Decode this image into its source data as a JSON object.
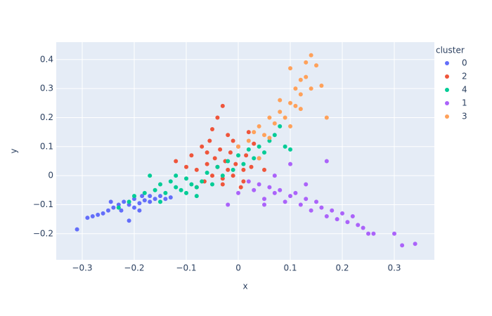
{
  "chart_data": {
    "type": "scatter",
    "x_label": "x",
    "y_label": "y",
    "legend_title": "cluster",
    "legend": "right",
    "grid": true,
    "xlim": [
      -0.35,
      0.377
    ],
    "ylim": [
      -0.29,
      0.46
    ],
    "xticks": [
      {
        "value": -0.3,
        "label": "−0.3"
      },
      {
        "value": -0.2,
        "label": "−0.2"
      },
      {
        "value": -0.1,
        "label": "−0.1"
      },
      0,
      0.1,
      0.2,
      0.3
    ],
    "yticks": [
      {
        "value": -0.2,
        "label": "−0.2"
      },
      {
        "value": -0.1,
        "label": "−0.1"
      },
      0,
      0.1,
      0.2,
      0.3,
      0.4
    ],
    "series": [
      {
        "name": "0",
        "color": "#636efa",
        "x": [
          -0.31,
          -0.29,
          -0.28,
          -0.27,
          -0.26,
          -0.25,
          -0.245,
          -0.24,
          -0.23,
          -0.225,
          -0.22,
          -0.21,
          -0.2,
          -0.2,
          -0.19,
          -0.185,
          -0.18,
          -0.17,
          -0.17,
          -0.16,
          -0.15,
          -0.14,
          -0.13,
          -0.21,
          -0.19
        ],
        "values": [
          -0.185,
          -0.145,
          -0.14,
          -0.135,
          -0.13,
          -0.12,
          -0.09,
          -0.11,
          -0.1,
          -0.12,
          -0.09,
          -0.1,
          -0.08,
          -0.11,
          -0.095,
          -0.07,
          -0.085,
          -0.09,
          -0.07,
          -0.08,
          -0.07,
          -0.08,
          -0.075,
          -0.155,
          -0.12
        ]
      },
      {
        "name": "2",
        "color": "#ef553b",
        "x": [
          -0.12,
          -0.1,
          -0.09,
          -0.08,
          -0.07,
          -0.065,
          -0.06,
          -0.055,
          -0.05,
          -0.05,
          -0.045,
          -0.04,
          -0.035,
          -0.03,
          -0.03,
          -0.025,
          -0.02,
          -0.02,
          -0.015,
          -0.01,
          -0.005,
          0,
          0.005,
          0.01,
          0.015,
          0.02,
          0.025,
          0.03,
          0.04,
          0.05,
          -0.03,
          -0.06,
          -0.08,
          -0.04,
          -0.01,
          0.01
        ],
        "values": [
          0.05,
          0.03,
          0.07,
          0.02,
          0.1,
          -0.02,
          0.04,
          0.12,
          0.0,
          0.16,
          0.06,
          0.03,
          0.09,
          -0.03,
          0.24,
          0.05,
          0.02,
          0.14,
          0.08,
          0.0,
          0.04,
          0.1,
          -0.04,
          0.02,
          0.07,
          0.15,
          0.03,
          0.11,
          0.06,
          0.02,
          -0.01,
          0.08,
          -0.04,
          0.2,
          0.12,
          -0.02
        ]
      },
      {
        "name": "4",
        "color": "#00cc96",
        "x": [
          -0.23,
          -0.21,
          -0.2,
          -0.18,
          -0.17,
          -0.16,
          -0.15,
          -0.14,
          -0.13,
          -0.12,
          -0.11,
          -0.1,
          -0.1,
          -0.09,
          -0.08,
          -0.07,
          -0.06,
          -0.05,
          -0.04,
          -0.03,
          -0.02,
          -0.01,
          0,
          0.01,
          0.02,
          0.03,
          0.04,
          0.05,
          0.06,
          0.07,
          0.08,
          0.09,
          0.1,
          -0.15,
          -0.12,
          -0.08
        ],
        "values": [
          -0.11,
          -0.09,
          -0.07,
          -0.06,
          0.0,
          -0.05,
          -0.03,
          -0.06,
          -0.02,
          -0.04,
          -0.05,
          -0.01,
          -0.06,
          -0.03,
          -0.04,
          -0.02,
          0.01,
          -0.03,
          0.03,
          0.0,
          0.05,
          0.02,
          0.07,
          0.04,
          0.09,
          0.06,
          0.1,
          0.08,
          0.12,
          0.14,
          0.17,
          0.1,
          0.09,
          -0.09,
          0.0,
          -0.07
        ]
      },
      {
        "name": "1",
        "color": "#ab63fa",
        "x": [
          -0.02,
          0,
          0.02,
          0.03,
          0.04,
          0.05,
          0.06,
          0.07,
          0.08,
          0.09,
          0.1,
          0.11,
          0.12,
          0.13,
          0.14,
          0.15,
          0.16,
          0.17,
          0.18,
          0.19,
          0.2,
          0.21,
          0.22,
          0.23,
          0.24,
          0.25,
          0.26,
          0.3,
          0.315,
          0.34,
          0.1,
          0.17,
          0.05,
          0.13,
          0.07
        ],
        "values": [
          -0.1,
          -0.06,
          -0.02,
          -0.05,
          -0.03,
          -0.08,
          -0.04,
          -0.06,
          -0.05,
          -0.09,
          -0.07,
          -0.06,
          -0.1,
          -0.08,
          -0.12,
          -0.09,
          -0.11,
          -0.14,
          -0.12,
          -0.15,
          -0.13,
          -0.16,
          -0.14,
          -0.17,
          -0.18,
          -0.2,
          -0.2,
          -0.2,
          -0.24,
          -0.235,
          0.04,
          0.05,
          -0.1,
          -0.03,
          0.0
        ]
      },
      {
        "name": "3",
        "color": "#ffa15a",
        "x": [
          0.0,
          0.02,
          0.03,
          0.04,
          0.05,
          0.06,
          0.07,
          0.08,
          0.08,
          0.09,
          0.1,
          0.1,
          0.11,
          0.11,
          0.12,
          0.12,
          0.13,
          0.13,
          0.14,
          0.14,
          0.15,
          0.16,
          0.17,
          0.06,
          0.1,
          0.12,
          0.04
        ],
        "values": [
          0.1,
          0.12,
          0.15,
          0.17,
          0.14,
          0.2,
          0.18,
          0.22,
          0.26,
          0.2,
          0.25,
          0.37,
          0.24,
          0.3,
          0.28,
          0.33,
          0.34,
          0.39,
          0.3,
          0.415,
          0.38,
          0.31,
          0.2,
          0.13,
          0.17,
          0.23,
          0.06
        ]
      }
    ]
  }
}
